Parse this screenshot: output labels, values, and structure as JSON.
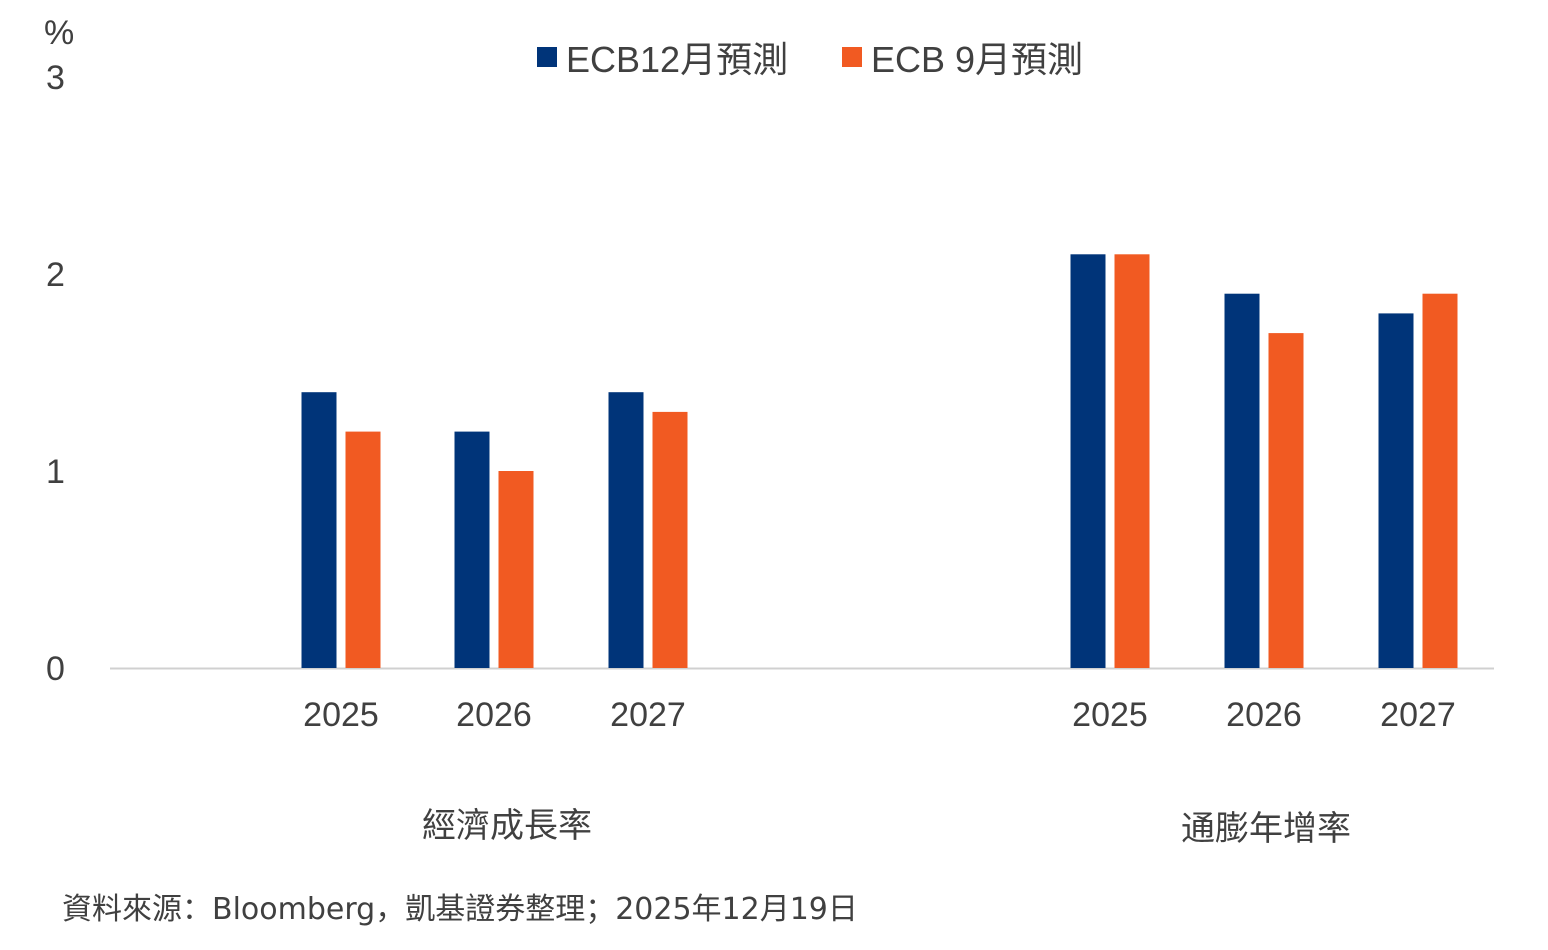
{
  "chart_data": {
    "type": "bar",
    "unit_label": "%",
    "ylim": [
      0,
      3
    ],
    "yticks": [
      "0",
      "1",
      "2",
      "3"
    ],
    "groups": [
      {
        "label": "經濟成長率",
        "categories": [
          "2025",
          "2026",
          "2027"
        ]
      },
      {
        "label": "通膨年增率",
        "categories": [
          "2025",
          "2026",
          "2027"
        ]
      }
    ],
    "series": [
      {
        "name": "ECB12月預測",
        "color": "#003479",
        "values": [
          1.4,
          1.2,
          1.4,
          2.1,
          1.9,
          1.8
        ]
      },
      {
        "name": "ECB 9月預測",
        "color": "#F15A22",
        "values": [
          1.2,
          1.0,
          1.3,
          2.1,
          1.7,
          1.9
        ]
      }
    ],
    "legend_position": "top-center",
    "grid": false
  },
  "source": "資料來源：Bloomberg，凱基證券整理；2025年12月19日"
}
